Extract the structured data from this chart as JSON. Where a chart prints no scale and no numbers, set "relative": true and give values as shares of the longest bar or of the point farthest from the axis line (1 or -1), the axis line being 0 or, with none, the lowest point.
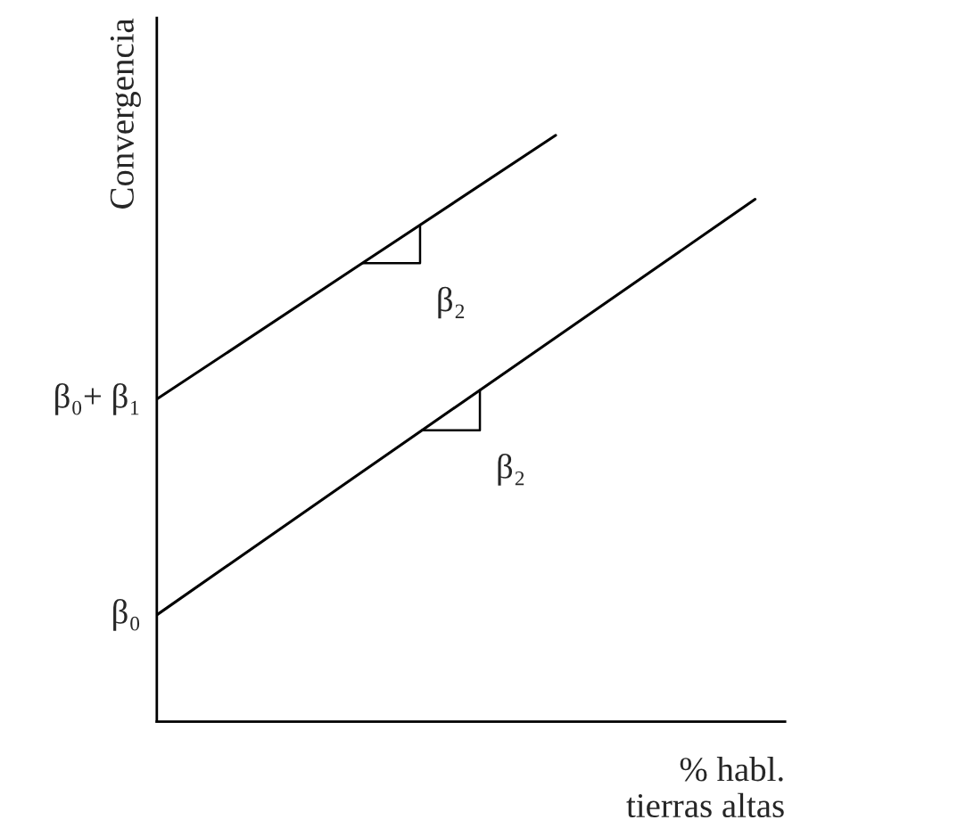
{
  "chart_data": {
    "type": "line",
    "relative": true,
    "xlabel": "% habl.\ntierras altas",
    "ylabel": "Convergencia",
    "categories": [
      null,
      null,
      null,
      null
    ],
    "series": [
      {
        "color": "#000000",
        "values": [
          0.55,
          0.775,
          1.0,
          null
        ]
      },
      {
        "color": "#000000",
        "values": [
          0.182,
          0.419,
          0.655,
          0.891
        ]
      }
    ],
    "annotations": [
      "β₀",
      "β₀+ β₁",
      "β₂",
      "β₂"
    ],
    "marker": "none",
    "line_style": "solid"
  }
}
